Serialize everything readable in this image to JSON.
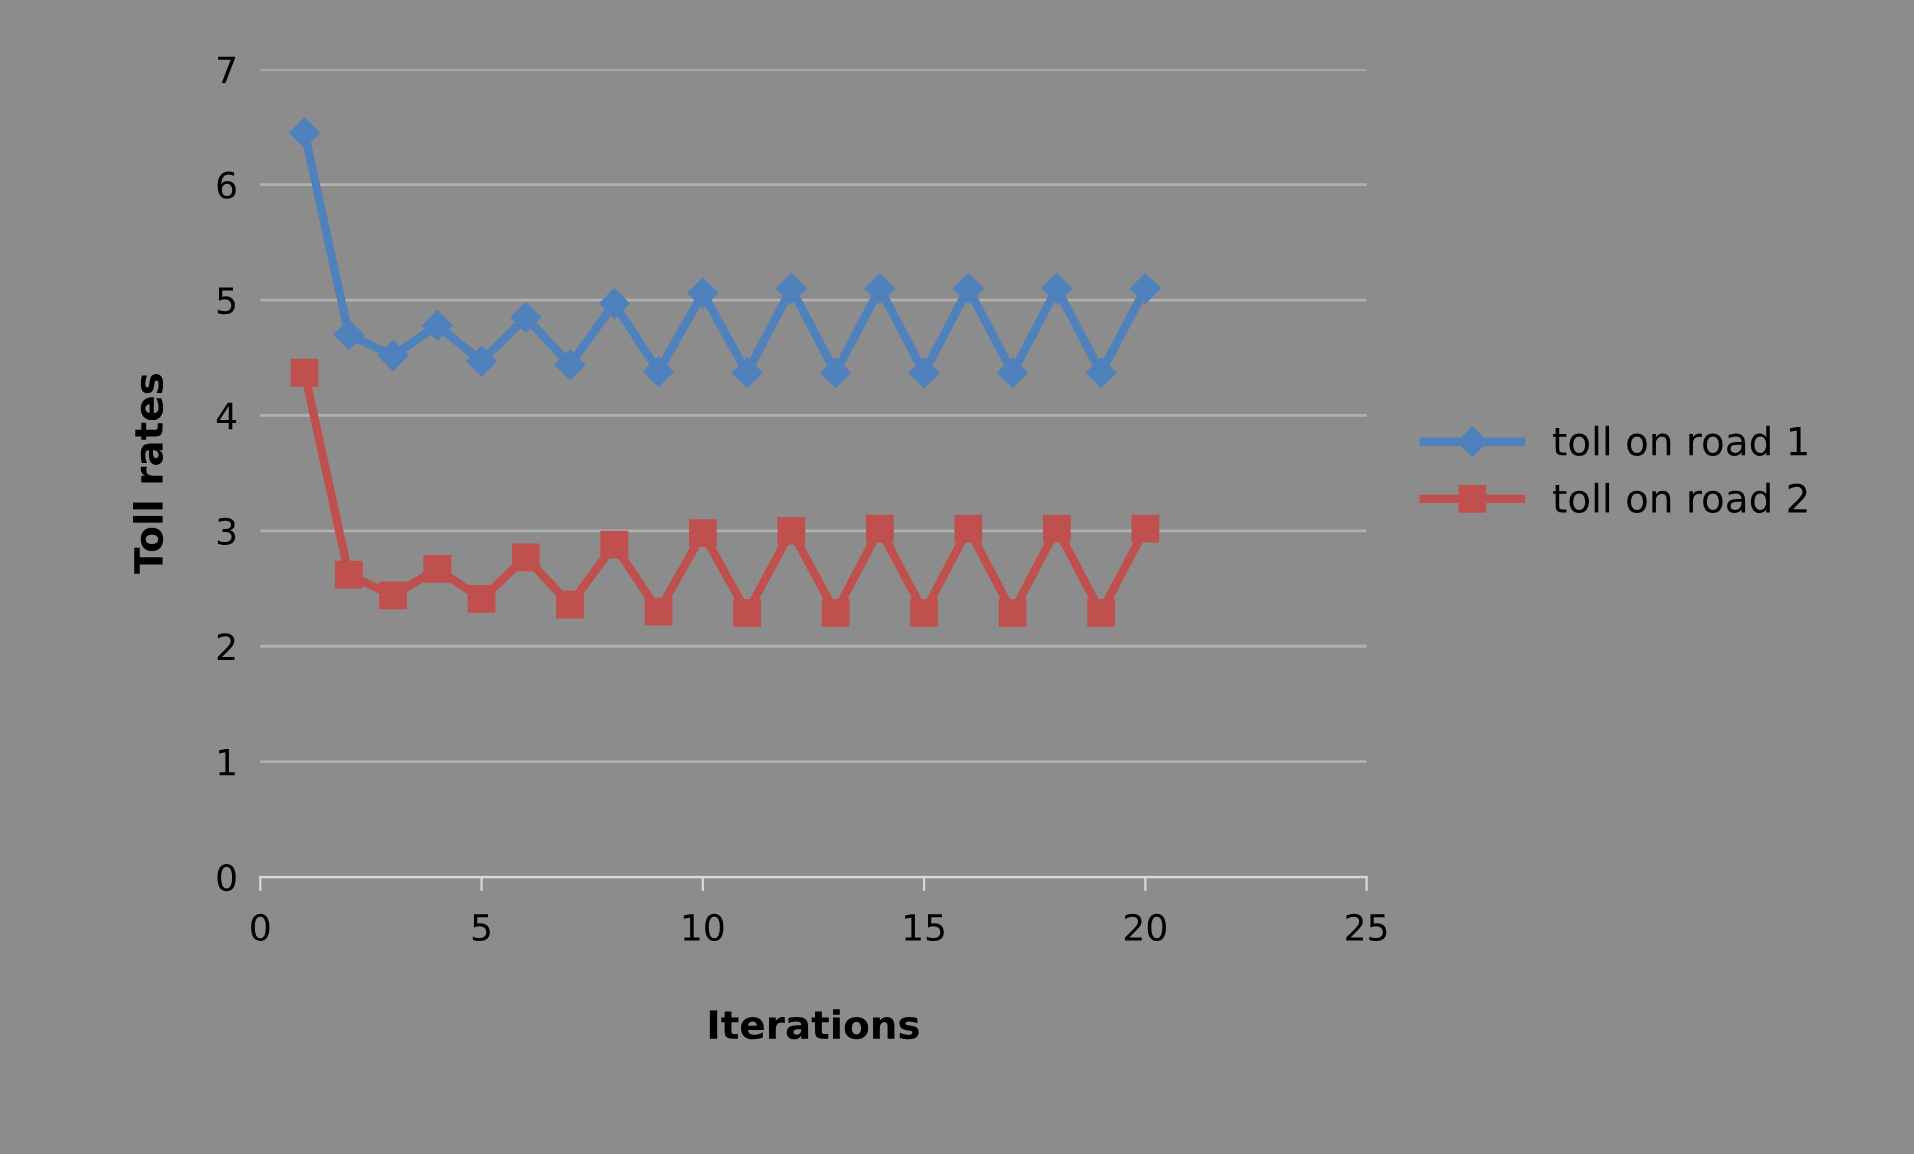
{
  "chart_data": {
    "type": "line",
    "xlabel": "Iterations",
    "ylabel": "Toll rates",
    "x": [
      1,
      2,
      3,
      4,
      5,
      6,
      7,
      8,
      9,
      10,
      11,
      12,
      13,
      14,
      15,
      16,
      17,
      18,
      19,
      20
    ],
    "series": [
      {
        "name": "toll on road 1",
        "color": "#4f81bd",
        "marker": "diamond",
        "values": [
          6.45,
          4.7,
          4.52,
          4.78,
          4.47,
          4.85,
          4.44,
          4.97,
          4.38,
          5.06,
          4.37,
          5.1,
          4.37,
          5.1,
          4.37,
          5.1,
          4.37,
          5.1,
          4.37,
          5.1
        ]
      },
      {
        "name": "toll on road 2",
        "color": "#c0504d",
        "marker": "square",
        "values": [
          4.37,
          2.62,
          2.44,
          2.67,
          2.41,
          2.77,
          2.36,
          2.88,
          2.3,
          2.98,
          2.29,
          3.0,
          2.29,
          3.02,
          2.29,
          3.02,
          2.29,
          3.02,
          2.29,
          3.02
        ]
      }
    ],
    "xlim": [
      0,
      25
    ],
    "xticks": [
      0,
      5,
      10,
      15,
      20,
      25
    ],
    "ylim": [
      0,
      7
    ],
    "yticks": [
      0,
      1,
      2,
      3,
      4,
      5,
      6,
      7
    ],
    "grid": "y",
    "legend": "right",
    "line_style": "solid"
  }
}
